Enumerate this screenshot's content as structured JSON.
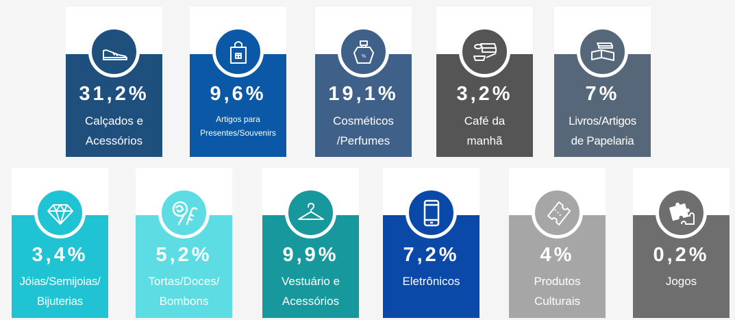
{
  "cards": [
    {
      "pct": "31,2%",
      "label": "Calçados e\nAcessórios",
      "icon": "shoe-icon",
      "color": "#1e4f7d"
    },
    {
      "pct": "9,6%",
      "label": "Artigos para\nPresentes/Souvenirs",
      "icon": "gift-bag-icon",
      "color": "#0b58a6"
    },
    {
      "pct": "19,1%",
      "label": "Cosméticos\n/Perfumes",
      "icon": "perfume-icon",
      "color": "#3f6089"
    },
    {
      "pct": "3,2%",
      "label": "Café da\nmanhã",
      "icon": "breakfast-icon",
      "color": "#555555"
    },
    {
      "pct": "7%",
      "label": "Livros/Artigos\nde Papelaria",
      "icon": "books-icon",
      "color": "#566779"
    },
    {
      "pct": "3,4%",
      "label": "Jóias/Semijoias/\nBijuterias",
      "icon": "diamond-icon",
      "color": "#1fc3d3"
    },
    {
      "pct": "5,2%",
      "label": "Tortas/Doces/\nBombons",
      "icon": "candy-icon",
      "color": "#5ddde3"
    },
    {
      "pct": "9,9%",
      "label": "Vestuário e\nAcessórios",
      "icon": "hanger-icon",
      "color": "#16989d"
    },
    {
      "pct": "7,2%",
      "label": "Eletrônicos",
      "icon": "smartphone-icon",
      "color": "#0a49a8"
    },
    {
      "pct": "4%",
      "label": "Produtos\nCulturais",
      "icon": "tickets-icon",
      "color": "#a6a6a6"
    },
    {
      "pct": "0,2%",
      "label": "Jogos",
      "icon": "puzzle-icon",
      "color": "#6e6e6e"
    }
  ]
}
